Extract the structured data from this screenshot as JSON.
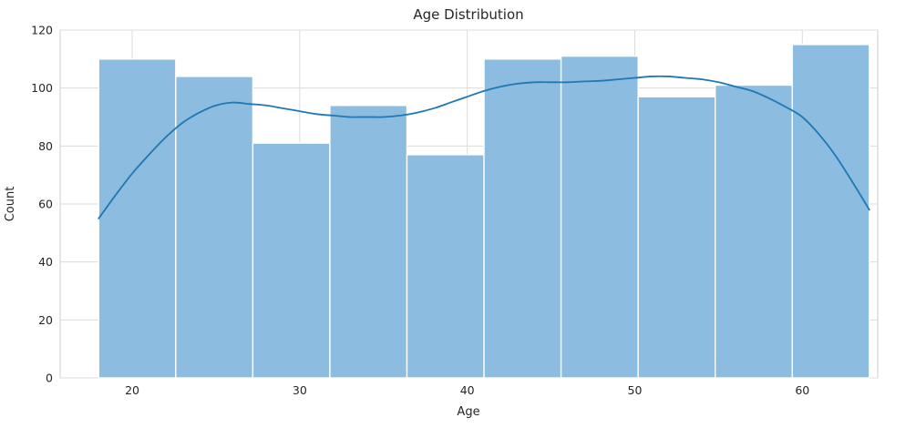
{
  "chart_data": {
    "type": "histogram",
    "title": "Age Distribution",
    "xlabel": "Age",
    "ylabel": "Count",
    "xlim": [
      15.7,
      64.5
    ],
    "ylim": [
      0,
      120
    ],
    "x_ticks": [
      20,
      30,
      40,
      50,
      60
    ],
    "y_ticks": [
      0,
      20,
      40,
      60,
      80,
      100,
      120
    ],
    "grid": true,
    "legend": false,
    "bin_edges": [
      18.0,
      22.6,
      27.2,
      31.8,
      36.4,
      41.0,
      45.6,
      50.2,
      54.8,
      59.4,
      64.0
    ],
    "counts": [
      110,
      104,
      81,
      94,
      77,
      110,
      111,
      97,
      101,
      115
    ],
    "kde": {
      "x": [
        18,
        19,
        20,
        21,
        22,
        23,
        24,
        25,
        26,
        27,
        28,
        29,
        30,
        31,
        32,
        33,
        34,
        35,
        36,
        37,
        38,
        39,
        40,
        41,
        42,
        43,
        44,
        45,
        46,
        47,
        48,
        49,
        50,
        51,
        52,
        53,
        54,
        55,
        56,
        57,
        58,
        59,
        60,
        61,
        62,
        63,
        64
      ],
      "y": [
        55,
        63,
        70.5,
        77,
        83,
        88,
        91.5,
        94,
        95,
        94.5,
        94,
        93,
        92,
        91,
        90.5,
        90,
        90,
        90,
        90.5,
        91.5,
        93,
        95,
        97,
        99,
        100.5,
        101.5,
        102,
        102,
        102,
        102.3,
        102.5,
        103,
        103.5,
        104,
        104,
        103.5,
        103,
        102,
        100.5,
        99,
        96.5,
        93.5,
        90,
        84,
        76.5,
        67.5,
        58
      ]
    },
    "colors": {
      "bar_fill": "#8cbcdf",
      "bar_edge": "#ffffff",
      "kde_line": "#1f77b4",
      "grid": "#dcdcdc",
      "plot_border": "#cccccc",
      "axis_text": "#262626",
      "background": "#ffffff"
    }
  }
}
